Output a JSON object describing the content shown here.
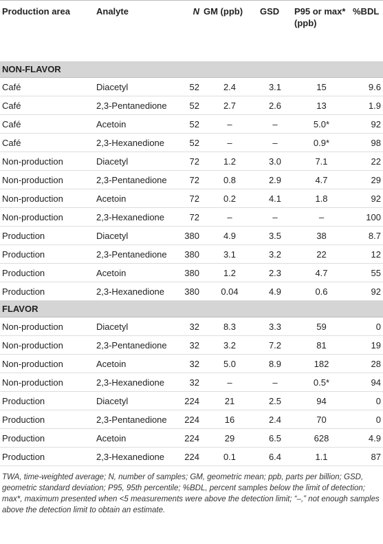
{
  "table": {
    "header": [
      "Production area",
      "Analyte",
      "N",
      "GM (ppb)",
      "GSD",
      "P95 or max* (ppb)",
      "%BDL"
    ],
    "sections": [
      {
        "title": "NON-FLAVOR",
        "rows": [
          [
            "Café",
            "Diacetyl",
            "52",
            "2.4",
            "3.1",
            "15",
            "9.6"
          ],
          [
            "Café",
            "2,3-Pentanedione",
            "52",
            "2.7",
            "2.6",
            "13",
            "1.9"
          ],
          [
            "Café",
            "Acetoin",
            "52",
            "–",
            "–",
            "5.0*",
            "92"
          ],
          [
            "Café",
            "2,3-Hexanedione",
            "52",
            "–",
            "–",
            "0.9*",
            "98"
          ],
          [
            "Non-production",
            "Diacetyl",
            "72",
            "1.2",
            "3.0",
            "7.1",
            "22"
          ],
          [
            "Non-production",
            "2,3-Pentanedione",
            "72",
            "0.8",
            "2.9",
            "4.7",
            "29"
          ],
          [
            "Non-production",
            "Acetoin",
            "72",
            "0.2",
            "4.1",
            "1.8",
            "92"
          ],
          [
            "Non-production",
            "2,3-Hexanedione",
            "72",
            "–",
            "–",
            "–",
            "100"
          ],
          [
            "Production",
            "Diacetyl",
            "380",
            "4.9",
            "3.5",
            "38",
            "8.7"
          ],
          [
            "Production",
            "2,3-Pentanedione",
            "380",
            "3.1",
            "3.2",
            "22",
            "12"
          ],
          [
            "Production",
            "Acetoin",
            "380",
            "1.2",
            "2.3",
            "4.7",
            "55"
          ],
          [
            "Production",
            "2,3-Hexanedione",
            "380",
            "0.04",
            "4.9",
            "0.6",
            "92"
          ]
        ]
      },
      {
        "title": "FLAVOR",
        "rows": [
          [
            "Non-production",
            "Diacetyl",
            "32",
            "8.3",
            "3.3",
            "59",
            "0"
          ],
          [
            "Non-production",
            "2,3-Pentanedione",
            "32",
            "3.2",
            "7.2",
            "81",
            "19"
          ],
          [
            "Non-production",
            "Acetoin",
            "32",
            "5.0",
            "8.9",
            "182",
            "28"
          ],
          [
            "Non-production",
            "2,3-Hexanedione",
            "32",
            "–",
            "–",
            "0.5*",
            "94"
          ],
          [
            "Production",
            "Diacetyl",
            "224",
            "21",
            "2.5",
            "94",
            "0"
          ],
          [
            "Production",
            "2,3-Pentanedione",
            "224",
            "16",
            "2.4",
            "70",
            "0"
          ],
          [
            "Production",
            "Acetoin",
            "224",
            "29",
            "6.5",
            "628",
            "4.9"
          ],
          [
            "Production",
            "2,3-Hexanedione",
            "224",
            "0.1",
            "6.4",
            "1.1",
            "87"
          ]
        ]
      }
    ],
    "footnote": "TWA, time-weighted average; N, number of samples; GM, geometric mean; ppb, parts per billion; GSD, geometric standard deviation; P95, 95th percentile; %BDL, percent samples below the limit of detection; max*, maximum presented when <5 measurements were above the detection limit; “–,” not enough samples above the detection limit to obtain an estimate."
  }
}
